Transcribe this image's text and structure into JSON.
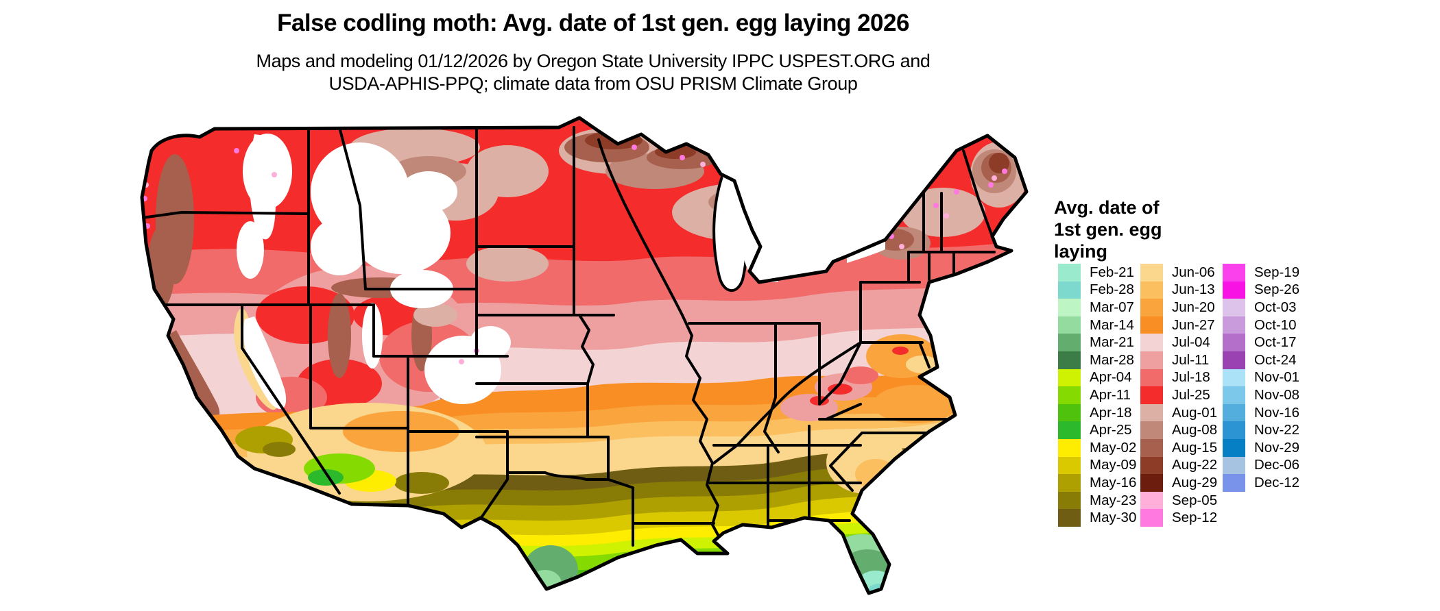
{
  "header": {
    "title": "False codling moth: Avg. date of 1st gen. egg laying 2026",
    "subtitle_line1": "Maps and modeling 01/12/2026 by Oregon State University IPPC USPEST.ORG and",
    "subtitle_line2": "USDA-APHIS-PPQ; climate data from OSU PRISM Climate Group"
  },
  "legend": {
    "title_lines": [
      "Avg. date of",
      "1st gen. egg",
      "laying"
    ],
    "columns": [
      {
        "entries": [
          {
            "label": "Feb-21",
            "color": "#9AEACD"
          },
          {
            "label": "Feb-28",
            "color": "#7DD8CD"
          },
          {
            "label": "Mar-07",
            "color": "#BDF5C5"
          },
          {
            "label": "Mar-14",
            "color": "#94DB9F"
          },
          {
            "label": "Mar-21",
            "color": "#63AE6E"
          },
          {
            "label": "Mar-28",
            "color": "#3C7C47"
          },
          {
            "label": "Apr-04",
            "color": "#CEF201"
          },
          {
            "label": "Apr-11",
            "color": "#85DB01"
          },
          {
            "label": "Apr-18",
            "color": "#4EC20C"
          },
          {
            "label": "Apr-25",
            "color": "#2CB92C"
          },
          {
            "label": "May-02",
            "color": "#FEEC01"
          },
          {
            "label": "May-09",
            "color": "#DAC901"
          },
          {
            "label": "May-16",
            "color": "#AFA001"
          },
          {
            "label": "May-23",
            "color": "#897C06"
          },
          {
            "label": "May-30",
            "color": "#6F5D14"
          }
        ]
      },
      {
        "entries": [
          {
            "label": "Jun-06",
            "color": "#FBD78E"
          },
          {
            "label": "Jun-13",
            "color": "#FBBF60"
          },
          {
            "label": "Jun-20",
            "color": "#FAA43D"
          },
          {
            "label": "Jun-27",
            "color": "#F98E25"
          },
          {
            "label": "Jul-04",
            "color": "#F3D3D3"
          },
          {
            "label": "Jul-11",
            "color": "#EEA0A0"
          },
          {
            "label": "Jul-18",
            "color": "#F16B6B"
          },
          {
            "label": "Jul-25",
            "color": "#F42C2C"
          },
          {
            "label": "Aug-01",
            "color": "#DCB0A4"
          },
          {
            "label": "Aug-08",
            "color": "#C08879"
          },
          {
            "label": "Aug-15",
            "color": "#A6604D"
          },
          {
            "label": "Aug-22",
            "color": "#8D3C27"
          },
          {
            "label": "Aug-29",
            "color": "#6D1D0D"
          },
          {
            "label": "Sep-05",
            "color": "#FFAFDA"
          },
          {
            "label": "Sep-12",
            "color": "#FF79E1"
          }
        ]
      },
      {
        "entries": [
          {
            "label": "Sep-19",
            "color": "#FA41EB"
          },
          {
            "label": "Sep-26",
            "color": "#F912E4"
          },
          {
            "label": "Oct-03",
            "color": "#DDC2E9"
          },
          {
            "label": "Oct-10",
            "color": "#CA9BDC"
          },
          {
            "label": "Oct-17",
            "color": "#B36FC9"
          },
          {
            "label": "Oct-24",
            "color": "#9B42B3"
          },
          {
            "label": "Nov-01",
            "color": "#ABE2F7"
          },
          {
            "label": "Nov-08",
            "color": "#7BC8EA"
          },
          {
            "label": "Nov-16",
            "color": "#53ADDD"
          },
          {
            "label": "Nov-22",
            "color": "#2C94D2"
          },
          {
            "label": "Nov-29",
            "color": "#077FC4"
          },
          {
            "label": "Dec-06",
            "color": "#A7C3E2"
          },
          {
            "label": "Dec-12",
            "color": "#7893E9"
          }
        ]
      }
    ]
  },
  "map": {
    "area": "contiguous United States choropleth raster",
    "border_color": "#000000",
    "water_color": "#FFFFFF",
    "no_data_color": "#FFFFFF"
  }
}
